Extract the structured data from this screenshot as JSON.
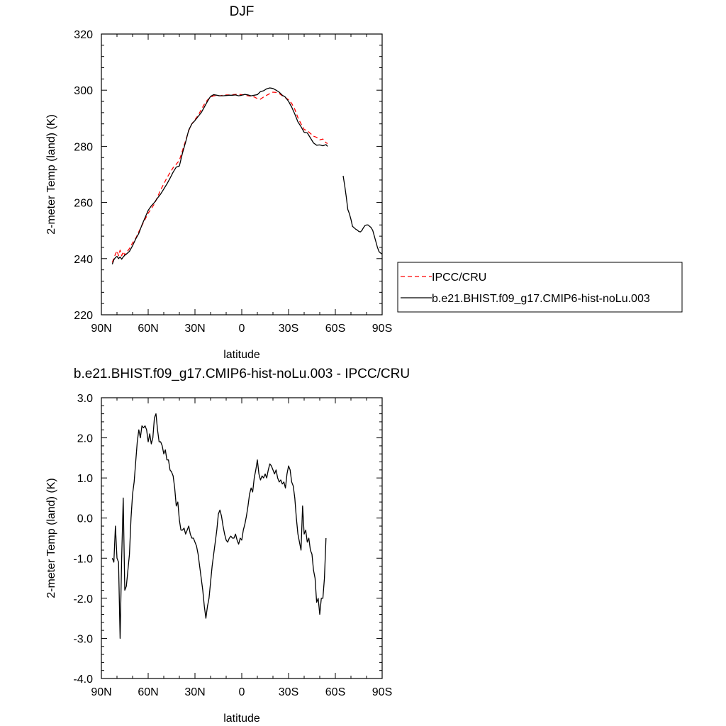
{
  "chart_data": [
    {
      "type": "line",
      "title": "DJF",
      "xlabel": "latitude",
      "ylabel": "2-meter Temp (land) (K)",
      "xlim": [
        90,
        -90
      ],
      "ylim": [
        220,
        320
      ],
      "xticks": [
        90,
        60,
        30,
        0,
        -30,
        -60,
        -90
      ],
      "xtick_labels": [
        "90N",
        "60N",
        "30N",
        "0",
        "30S",
        "60S",
        "90S"
      ],
      "yticks": [
        220,
        240,
        260,
        280,
        300,
        320
      ],
      "ytick_labels": [
        "220",
        "240",
        "260",
        "280",
        "300",
        "320"
      ],
      "legend_position": "right",
      "series": [
        {
          "name": "IPCC/CRU",
          "color": "#ff0000",
          "dash": "dashed",
          "x": [
            83,
            82,
            81,
            80,
            79,
            78,
            77,
            76,
            75,
            74,
            72,
            70,
            68,
            66,
            64,
            62,
            60,
            58,
            56,
            54,
            52,
            50,
            48,
            46,
            44,
            42,
            40,
            38,
            36,
            34,
            32,
            30,
            28,
            26,
            24,
            22,
            20,
            18,
            16,
            14,
            12,
            10,
            8,
            6,
            4,
            2,
            0,
            -2,
            -4,
            -6,
            -8,
            -10,
            -12,
            -14,
            -16,
            -18,
            -20,
            -22,
            -24,
            -26,
            -28,
            -30,
            -32,
            -34,
            -36,
            -38,
            -40,
            -42,
            -44,
            -46,
            -48,
            -50,
            -52,
            -54,
            -55
          ],
          "y": [
            238.6,
            240.2,
            241.6,
            242.8,
            241.0,
            243.0,
            241.0,
            242.5,
            241.3,
            242.0,
            243.6,
            245.6,
            247.2,
            249.6,
            251.8,
            254.0,
            256.2,
            257.8,
            259.5,
            262.0,
            264.5,
            266.6,
            268.8,
            270.6,
            272.4,
            273.6,
            275.0,
            278.5,
            282.0,
            285.6,
            288.0,
            289.5,
            291.0,
            293.0,
            295.0,
            296.5,
            297.5,
            298.0,
            298.0,
            298.0,
            298.2,
            298.3,
            298.3,
            298.4,
            298.5,
            298.5,
            298.4,
            298.2,
            298.0,
            297.8,
            297.6,
            297.0,
            296.8,
            297.6,
            298.2,
            298.8,
            299.3,
            299.2,
            298.8,
            298.0,
            297.3,
            296.6,
            295.3,
            293.2,
            290.2,
            288.0,
            286.0,
            285.6,
            284.6,
            283.6,
            283.2,
            282.3,
            282.6,
            281.3,
            281.0
          ]
        },
        {
          "name": "b.e21.BHIST.f09_g17.CMIP6-hist-noLu.003",
          "color": "#000000",
          "dash": "solid",
          "segments": [
            {
              "x": [
                83,
                82,
                81,
                80,
                79,
                78,
                77,
                76,
                75,
                74,
                72,
                70,
                68,
                66,
                64,
                62,
                60,
                58,
                56,
                54,
                52,
                50,
                48,
                46,
                44,
                42,
                40,
                38,
                36,
                34,
                32,
                30,
                28,
                26,
                24,
                22,
                20,
                18,
                16,
                14,
                12,
                10,
                8,
                6,
                4,
                2,
                0,
                -2,
                -4,
                -6,
                -8,
                -10,
                -12,
                -14,
                -16,
                -18,
                -20,
                -22,
                -24,
                -26,
                -28,
                -30,
                -32,
                -34,
                -36,
                -38,
                -40,
                -42,
                -44,
                -46,
                -48,
                -50,
                -52,
                -54,
                -55
              ],
              "y": [
                238.0,
                239.6,
                240.4,
                240.8,
                240.0,
                240.6,
                239.8,
                240.6,
                241.2,
                241.6,
                242.6,
                244.6,
                247.0,
                249.0,
                252.0,
                254.6,
                257.2,
                258.8,
                260.0,
                261.6,
                263.0,
                264.8,
                266.6,
                268.6,
                270.8,
                272.6,
                273.0,
                277.6,
                281.5,
                285.8,
                288.0,
                289.2,
                290.6,
                292.0,
                294.0,
                296.0,
                297.8,
                298.4,
                298.2,
                298.0,
                298.0,
                298.1,
                298.2,
                298.2,
                298.3,
                298.0,
                298.2,
                298.5,
                298.3,
                298.0,
                298.2,
                298.4,
                299.5,
                299.8,
                300.5,
                300.8,
                300.6,
                300.0,
                299.3,
                298.2,
                297.5,
                296.0,
                294.0,
                291.5,
                288.7,
                287.0,
                285.0,
                284.8,
                283.0,
                281.2,
                280.4,
                280.5,
                280.2,
                280.6,
                280.0
              ]
            },
            {
              "x": [
                -65,
                -66,
                -67,
                -68,
                -69,
                -70,
                -71,
                -72,
                -73,
                -74,
                -75,
                -76,
                -77,
                -78,
                -79,
                -80,
                -81,
                -82,
                -83,
                -84,
                -85,
                -86,
                -87,
                -88,
                -89,
                -90
              ],
              "y": [
                269.5,
                266.0,
                262.0,
                257.5,
                256.0,
                254.0,
                251.5,
                251.0,
                250.5,
                250.2,
                249.7,
                249.5,
                250.0,
                251.0,
                251.8,
                252.0,
                252.0,
                251.5,
                251.0,
                250.0,
                248.0,
                246.0,
                244.0,
                242.5,
                242.0,
                241.6
              ]
            }
          ]
        }
      ]
    },
    {
      "type": "line",
      "title": "b.e21.BHIST.f09_g17.CMIP6-hist-noLu.003 - IPCC/CRU",
      "xlabel": "latitude",
      "ylabel": "2-meter Temp (land) (K)",
      "xlim": [
        90,
        -90
      ],
      "ylim": [
        -4.0,
        3.0
      ],
      "xticks": [
        90,
        60,
        30,
        0,
        -30,
        -60,
        -90
      ],
      "xtick_labels": [
        "90N",
        "60N",
        "30N",
        "0",
        "30S",
        "60S",
        "90S"
      ],
      "yticks": [
        -4,
        -3,
        -2,
        -1,
        0,
        1,
        2,
        3
      ],
      "ytick_labels": [
        "-4.0",
        "-3.0",
        "-2.0",
        "-1.0",
        "0.0",
        "1.0",
        "2.0",
        "3.0"
      ],
      "series": [
        {
          "color": "#000000",
          "dash": "solid",
          "x": [
            83,
            82,
            81,
            80,
            79,
            78,
            77,
            76,
            75,
            74,
            73,
            72,
            71,
            70,
            69,
            68,
            67,
            66,
            65,
            64,
            63,
            62,
            61,
            60,
            59,
            58,
            57,
            56,
            55,
            54,
            53,
            52,
            51,
            50,
            49,
            48,
            47,
            46,
            45,
            44,
            43,
            42,
            41,
            40,
            39,
            38,
            37,
            36,
            35,
            34,
            33,
            32,
            31,
            30,
            29,
            28,
            27,
            26,
            25,
            24,
            23,
            22,
            21,
            20,
            19,
            18,
            17,
            16,
            15,
            14,
            13,
            12,
            11,
            10,
            9,
            8,
            7,
            6,
            5,
            4,
            3,
            2,
            1,
            0,
            -1,
            -2,
            -3,
            -4,
            -5,
            -6,
            -7,
            -8,
            -9,
            -10,
            -11,
            -12,
            -13,
            -14,
            -15,
            -16,
            -17,
            -18,
            -19,
            -20,
            -21,
            -22,
            -23,
            -24,
            -25,
            -26,
            -27,
            -28,
            -29,
            -30,
            -31,
            -32,
            -33,
            -34,
            -35,
            -36,
            -37,
            -38,
            -39,
            -40,
            -41,
            -42,
            -43,
            -44,
            -45,
            -46,
            -47,
            -48,
            -49,
            -50,
            -51,
            -52,
            -53,
            -54
          ],
          "y": [
            -1.0,
            -1.1,
            -0.2,
            -1.0,
            -1.1,
            -3.0,
            -1.0,
            0.5,
            -1.8,
            -1.7,
            -1.3,
            -0.9,
            0.0,
            0.6,
            0.9,
            1.4,
            1.9,
            2.2,
            2.0,
            2.3,
            2.25,
            2.3,
            2.2,
            1.9,
            2.1,
            1.85,
            2.0,
            2.5,
            2.6,
            2.2,
            1.9,
            1.9,
            1.8,
            1.6,
            1.7,
            1.45,
            1.45,
            1.2,
            1.15,
            1.05,
            0.75,
            0.3,
            0.4,
            -0.05,
            -0.3,
            -0.3,
            -0.25,
            -0.4,
            -0.3,
            -0.2,
            -0.4,
            -0.5,
            -0.5,
            -0.6,
            -0.7,
            -0.9,
            -1.2,
            -1.5,
            -1.8,
            -2.2,
            -2.5,
            -2.2,
            -2.0,
            -1.6,
            -1.2,
            -0.9,
            -0.6,
            -0.3,
            0.1,
            0.2,
            0.05,
            -0.2,
            -0.4,
            -0.55,
            -0.6,
            -0.5,
            -0.45,
            -0.5,
            -0.5,
            -0.4,
            -0.55,
            -0.65,
            -0.5,
            -0.55,
            -0.3,
            -0.15,
            0.05,
            0.3,
            0.6,
            0.75,
            0.65,
            1.0,
            1.2,
            1.45,
            1.1,
            0.95,
            1.05,
            1.0,
            1.1,
            1.0,
            1.2,
            1.35,
            1.3,
            1.2,
            1.1,
            1.2,
            1.0,
            0.9,
            0.95,
            0.85,
            0.9,
            0.75,
            1.1,
            1.3,
            1.2,
            0.9,
            0.8,
            0.5,
            0.0,
            -0.4,
            -0.6,
            -0.8,
            0.3,
            -0.4,
            -0.3,
            -0.6,
            -0.5,
            -0.8,
            -0.9,
            -1.3,
            -1.5,
            -2.1,
            -2.0,
            -2.4,
            -2.0,
            -2.0,
            -1.5,
            -0.5
          ]
        }
      ]
    }
  ]
}
